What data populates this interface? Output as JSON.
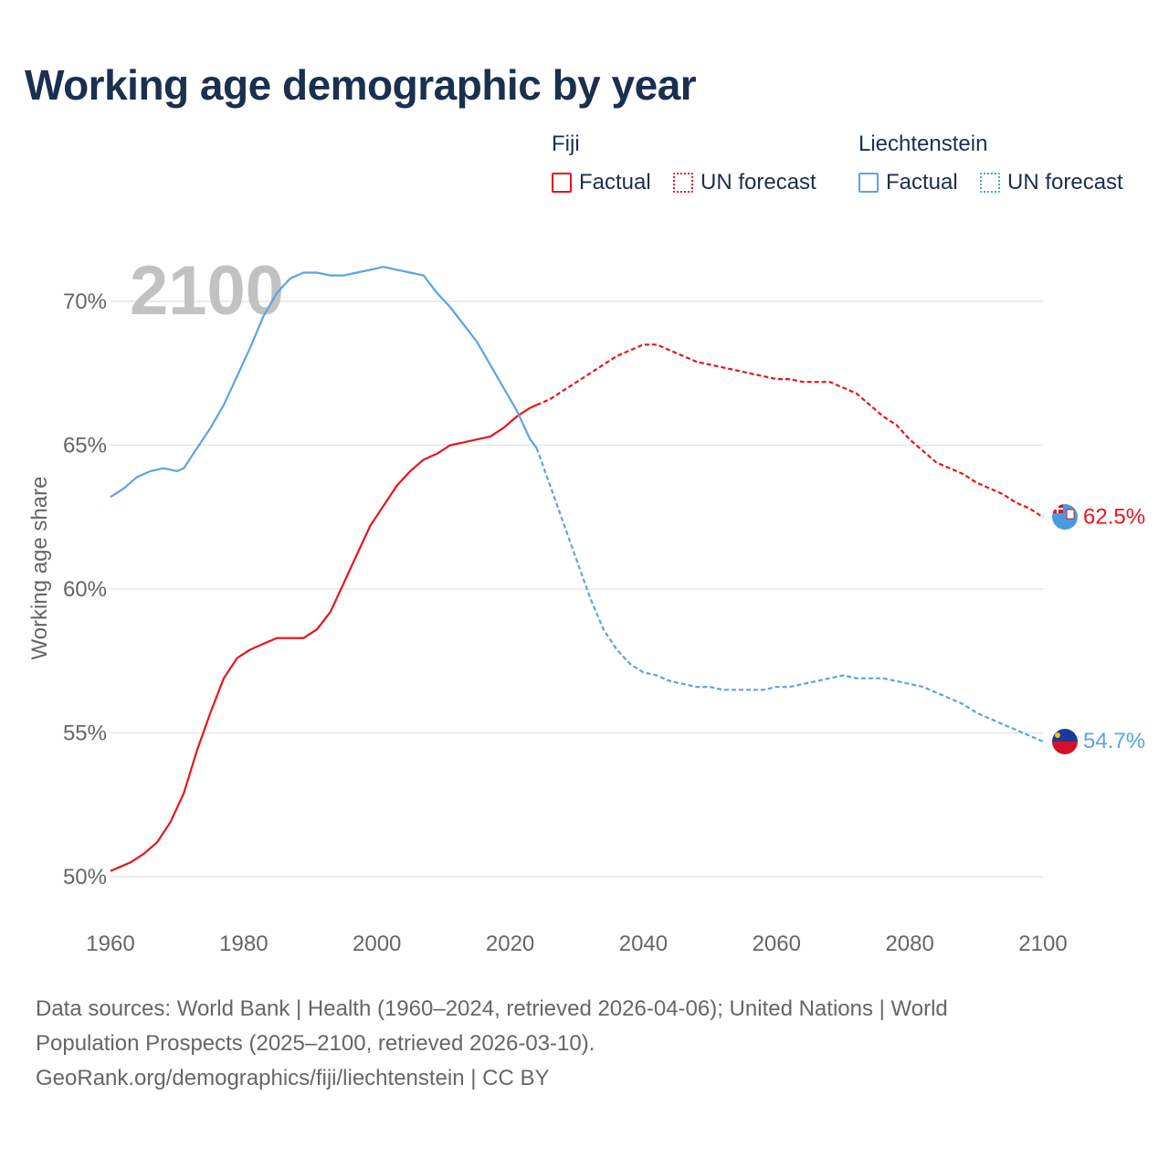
{
  "title": "Working age demographic by year",
  "legend": {
    "groups": [
      {
        "country": "Fiji",
        "factual_label": "Factual",
        "forecast_label": "UN forecast",
        "color": "#e8141b"
      },
      {
        "country": "Liechtenstein",
        "factual_label": "Factual",
        "forecast_label": "UN forecast",
        "color": "#5ba4e6"
      }
    ]
  },
  "year_overlay": "2100",
  "sources": {
    "line1": "Data sources: World Bank | Health (1960–2024, retrieved 2026-04-06); United Nations | World",
    "line2": "Population Prospects (2025–2100, retrieved 2026-03-10).",
    "line3": "GeoRank.org/demographics/fiji/liechtenstein | CC BY"
  },
  "chart_data": {
    "type": "line",
    "title": "Working age demographic by year",
    "xlabel": "",
    "ylabel": "Working age share",
    "xlim": [
      1960,
      2100
    ],
    "ylim": [
      50,
      72
    ],
    "x_ticks": [
      1960,
      1980,
      2000,
      2020,
      2040,
      2060,
      2080,
      2100
    ],
    "x_tick_labels": [
      "1960",
      "1980",
      "2000",
      "2020",
      "2040",
      "2060",
      "2080",
      "2100"
    ],
    "y_ticks": [
      50,
      55,
      60,
      65,
      70
    ],
    "y_tick_labels": [
      "50%",
      "55%",
      "60%",
      "65%",
      "70%"
    ],
    "grid": true,
    "forecast_start_year": 2024,
    "series": [
      {
        "name": "Fiji",
        "color": "#e8141b",
        "end_label": "62.5%",
        "x": [
          1960,
          1963,
          1965,
          1967,
          1969,
          1971,
          1973,
          1975,
          1977,
          1979,
          1981,
          1983,
          1985,
          1987,
          1989,
          1991,
          1993,
          1995,
          1997,
          1999,
          2001,
          2003,
          2005,
          2007,
          2009,
          2011,
          2013,
          2015,
          2017,
          2019,
          2021,
          2023,
          2024,
          2026,
          2028,
          2030,
          2032,
          2034,
          2036,
          2038,
          2040,
          2042,
          2044,
          2046,
          2048,
          2050,
          2052,
          2054,
          2056,
          2058,
          2060,
          2062,
          2064,
          2066,
          2068,
          2070,
          2072,
          2074,
          2076,
          2078,
          2080,
          2082,
          2084,
          2086,
          2088,
          2090,
          2092,
          2094,
          2096,
          2098,
          2100
        ],
        "values": [
          50.2,
          50.5,
          50.8,
          51.2,
          51.9,
          52.9,
          54.4,
          55.7,
          56.9,
          57.6,
          57.9,
          58.1,
          58.3,
          58.3,
          58.3,
          58.6,
          59.2,
          60.2,
          61.2,
          62.2,
          62.9,
          63.6,
          64.1,
          64.5,
          64.7,
          65.0,
          65.1,
          65.2,
          65.3,
          65.6,
          66.0,
          66.3,
          66.4,
          66.6,
          66.9,
          67.2,
          67.5,
          67.8,
          68.1,
          68.3,
          68.5,
          68.5,
          68.3,
          68.1,
          67.9,
          67.8,
          67.7,
          67.6,
          67.5,
          67.4,
          67.3,
          67.3,
          67.2,
          67.2,
          67.2,
          67.0,
          66.8,
          66.4,
          66.0,
          65.7,
          65.2,
          64.8,
          64.4,
          64.2,
          64.0,
          63.7,
          63.5,
          63.3,
          63.0,
          62.8,
          62.5
        ]
      },
      {
        "name": "Liechtenstein",
        "color": "#5ba4e6",
        "end_label": "54.7%",
        "x": [
          1960,
          1962,
          1964,
          1966,
          1968,
          1970,
          1971,
          1973,
          1975,
          1977,
          1979,
          1981,
          1983,
          1985,
          1987,
          1989,
          1991,
          1993,
          1995,
          1997,
          1999,
          2001,
          2003,
          2005,
          2007,
          2009,
          2011,
          2013,
          2015,
          2017,
          2019,
          2021,
          2023,
          2024,
          2026,
          2028,
          2030,
          2032,
          2034,
          2036,
          2038,
          2040,
          2042,
          2044,
          2046,
          2048,
          2050,
          2052,
          2054,
          2056,
          2058,
          2060,
          2062,
          2064,
          2066,
          2068,
          2070,
          2072,
          2074,
          2076,
          2078,
          2080,
          2082,
          2084,
          2086,
          2088,
          2090,
          2092,
          2094,
          2096,
          2098,
          2100
        ],
        "values": [
          63.2,
          63.5,
          63.9,
          64.1,
          64.2,
          64.1,
          64.2,
          64.9,
          65.6,
          66.4,
          67.4,
          68.4,
          69.5,
          70.3,
          70.8,
          71.0,
          71.0,
          70.9,
          70.9,
          71.0,
          71.1,
          71.2,
          71.1,
          71.0,
          70.9,
          70.3,
          69.8,
          69.2,
          68.6,
          67.8,
          67.0,
          66.2,
          65.2,
          64.9,
          63.6,
          62.3,
          61.0,
          59.7,
          58.6,
          57.9,
          57.4,
          57.1,
          57.0,
          56.8,
          56.7,
          56.6,
          56.6,
          56.5,
          56.5,
          56.5,
          56.5,
          56.6,
          56.6,
          56.7,
          56.8,
          56.9,
          57.0,
          56.9,
          56.9,
          56.9,
          56.8,
          56.7,
          56.6,
          56.4,
          56.2,
          56.0,
          55.7,
          55.5,
          55.3,
          55.1,
          54.9,
          54.7
        ]
      }
    ]
  }
}
